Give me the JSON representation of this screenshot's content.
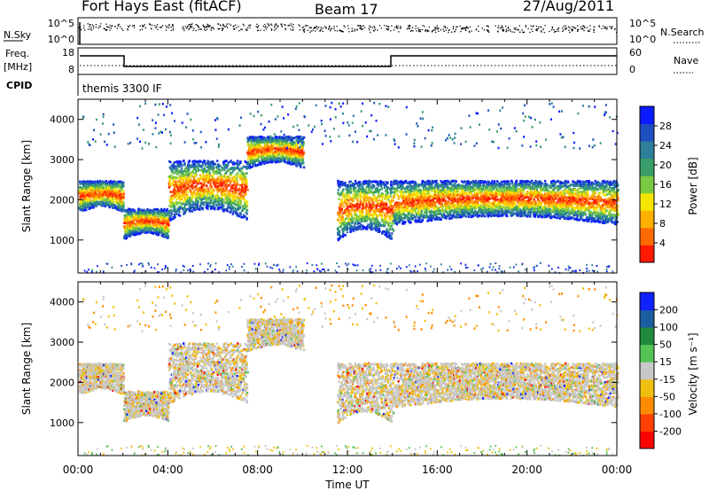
{
  "header": {
    "station": "Fort Hays East (fitACF)",
    "beam": "Beam 17",
    "date": "27/Aug/2011"
  },
  "colors": {
    "power_scale": [
      "#0a1bff",
      "#1f4fbf",
      "#2d7f9a",
      "#3a9e6a",
      "#7ac943",
      "#f4e600",
      "#ffb000",
      "#ff6a00",
      "#ff1a00"
    ],
    "velocity_scale": [
      "#1021ff",
      "#1b5fa0",
      "#1f8a3d",
      "#55c255",
      "#c8c8c8",
      "#f0c010",
      "#ff8c00",
      "#ff4000",
      "#ff0000"
    ]
  },
  "noise_panel": {
    "left_label": "N.Sky",
    "right_label": "N.Search",
    "left_ticks": [
      "10^5",
      "10^0"
    ],
    "right_ticks": [
      "10^5",
      "10^0"
    ]
  },
  "freq_panel": {
    "left_label": "Freq.",
    "unit": "[MHz]",
    "right_label": "Nave",
    "left_ticks": [
      "18",
      "8"
    ],
    "right_ticks": [
      "60",
      "0"
    ]
  },
  "cpid_panel": {
    "label": "CPID",
    "text": "themis 3300 IF"
  },
  "chart_data": [
    {
      "type": "heatmap",
      "name": "power",
      "ylabel": "Slant Range [km]",
      "xlabel": "Time UT",
      "x_ticks": [
        "00:00",
        "04:00",
        "08:00",
        "12:00",
        "16:00",
        "20:00",
        "00:00"
      ],
      "y_ticks": [
        "1000",
        "2000",
        "3000",
        "4000"
      ],
      "ylim": [
        180,
        4500
      ],
      "colorbar_label": "Power [dB]",
      "colorbar_ticks": [
        "28",
        "24",
        "20",
        "16",
        "12",
        "8",
        "4"
      ],
      "colorbar_range": [
        0,
        32
      ],
      "echo_bands_hours_km": [
        {
          "t_start": 0.0,
          "t_end": 2.0,
          "range_low": 1700,
          "range_high": 2500
        },
        {
          "t_start": 2.0,
          "t_end": 4.0,
          "range_low": 1050,
          "range_high": 1800
        },
        {
          "t_start": 4.0,
          "t_end": 7.5,
          "range_low": 1500,
          "range_high": 3000
        },
        {
          "t_start": 7.5,
          "t_end": 10.0,
          "range_low": 2800,
          "range_high": 3600
        },
        {
          "t_start": 11.5,
          "t_end": 14.0,
          "range_low": 1000,
          "range_high": 2500
        },
        {
          "t_start": 14.0,
          "t_end": 24.0,
          "range_low": 1400,
          "range_high": 2500
        }
      ]
    },
    {
      "type": "heatmap",
      "name": "velocity",
      "ylabel": "Slant Range [km]",
      "xlabel": "Time UT",
      "x_ticks": [
        "00:00",
        "04:00",
        "08:00",
        "12:00",
        "16:00",
        "20:00",
        "00:00"
      ],
      "y_ticks": [
        "1000",
        "2000",
        "3000",
        "4000"
      ],
      "ylim": [
        180,
        4500
      ],
      "colorbar_label": "Velocity [m s⁻¹]",
      "colorbar_ticks": [
        "200",
        "100",
        "50",
        "15",
        "-15",
        "-50",
        "-100",
        "-200"
      ],
      "colorbar_range": [
        -250,
        250
      ]
    }
  ]
}
